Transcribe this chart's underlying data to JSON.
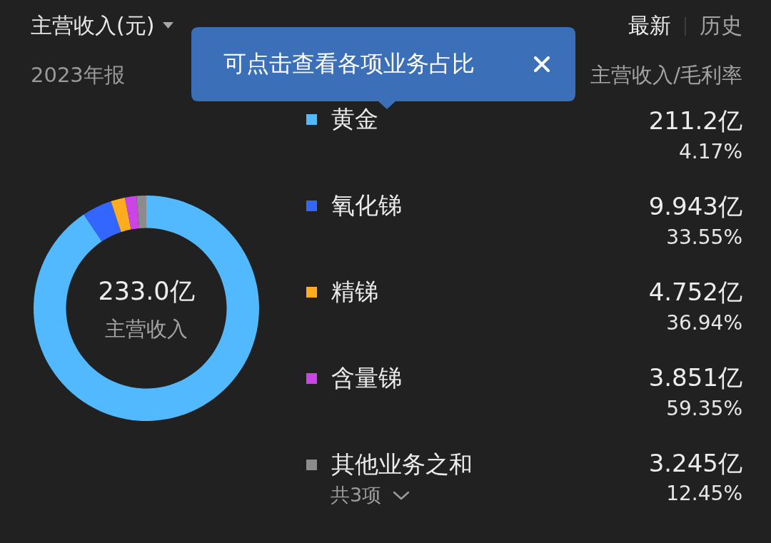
{
  "chart_data": {
    "type": "donut",
    "title": "主营收入(元)",
    "subtitle": "2023年报",
    "categories": [
      "黄金",
      "氧化锑",
      "精锑",
      "含量锑",
      "其他业务之和"
    ],
    "values": [
      211.2,
      9.943,
      4.752,
      3.851,
      3.245
    ],
    "colors": [
      "#52b9ff",
      "#3366ff",
      "#ffad1f",
      "#cc44e6",
      "#8c8c8c"
    ],
    "value_labels": [
      "211.2亿",
      "9.943亿",
      "4.752亿",
      "3.851亿",
      "3.245亿"
    ],
    "legend": "right",
    "annotations": [
      "最新",
      "历史",
      "可点击查看各项业务占比",
      "主营收入/毛利率",
      "233.0亿",
      "主营收入",
      "4.17%",
      "33.55%",
      "36.94%",
      "59.35%",
      "12.45%",
      "共3项"
    ]
  }
}
